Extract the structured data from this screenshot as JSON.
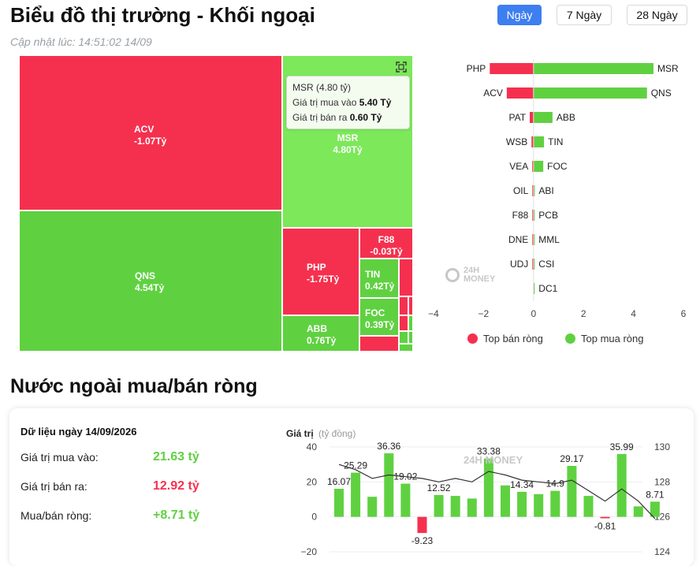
{
  "header": {
    "title": "Biểu đồ thị trường - Khối ngoại",
    "updated": "Cập nhật lúc: 14:51:02 14/09",
    "periods": [
      "Ngày",
      "7 Ngày",
      "28 Ngày"
    ],
    "active_period": "Ngày"
  },
  "colors": {
    "sell": "#f5304f",
    "buy": "#5fd141",
    "accent": "#3d7ef0",
    "line": "#333333"
  },
  "chart_data": [
    {
      "type": "heatmap",
      "name": "treemap",
      "cells": [
        {
          "code": "ACV",
          "value": "-1.07Tỷ",
          "side": "sell"
        },
        {
          "code": "QNS",
          "value": "4.54Tỷ",
          "side": "buy"
        },
        {
          "code": "MSR",
          "value": "4.80Tỷ",
          "side": "buy"
        },
        {
          "code": "PHP",
          "value": "-1.75Tỷ",
          "side": "sell"
        },
        {
          "code": "ABB",
          "value": "0.76Tỷ",
          "side": "buy"
        },
        {
          "code": "F88",
          "value": "-0.03Tỷ",
          "side": "sell"
        },
        {
          "code": "TIN",
          "value": "0.42Tỷ",
          "side": "buy"
        },
        {
          "code": "FOC",
          "value": "0.39Tỷ",
          "side": "buy"
        }
      ],
      "tooltip": {
        "title": "MSR (4.80 tỷ)",
        "buy_label": "Giá trị mua vào",
        "buy_value": "5.40 Tỷ",
        "sell_label": "Giá trị bán ra",
        "sell_value": "0.60 Tỷ"
      }
    },
    {
      "type": "bar",
      "name": "top-net",
      "sell_labels": [
        "PHP",
        "ACV",
        "PAT",
        "WSB",
        "VEA",
        "OIL",
        "F88",
        "DNE",
        "UDJ"
      ],
      "sell_values": [
        -1.75,
        -1.07,
        -0.15,
        -0.08,
        -0.05,
        -0.03,
        -0.03,
        -0.02,
        -0.02
      ],
      "buy_labels": [
        "MSR",
        "QNS",
        "ABB",
        "TIN",
        "FOC",
        "ABI",
        "PCB",
        "MML",
        "CSI",
        "DC1"
      ],
      "buy_values": [
        4.8,
        4.54,
        0.76,
        0.42,
        0.39,
        0.05,
        0.04,
        0.03,
        0.02,
        0.01
      ],
      "xlim": [
        -4,
        6
      ],
      "xticks": [
        -4,
        -2,
        0,
        2,
        4,
        6
      ],
      "legend": [
        "Top bán ròng",
        "Top mua ròng"
      ]
    },
    {
      "type": "bar",
      "name": "net-history",
      "ylabel": "Giá trị",
      "yunit": "(tỷ đồng)",
      "ylim": [
        -20,
        40
      ],
      "yticks": [
        -20,
        0,
        20,
        40
      ],
      "y2lim": [
        124,
        130
      ],
      "y2ticks": [
        124,
        126,
        128,
        130
      ],
      "values": [
        16.07,
        25.29,
        11.5,
        36.36,
        19.02,
        -9.23,
        12.52,
        12.0,
        10.5,
        33.38,
        18.0,
        14.34,
        13.0,
        14.9,
        29.17,
        12.0,
        -0.81,
        35.99,
        6.0,
        8.71
      ],
      "labels": [
        "16.07",
        "25.29",
        "",
        "36.36",
        "19.02",
        "-9.23",
        "12.52",
        "",
        "",
        "33.38",
        "",
        "14.34",
        "",
        "14.9",
        "29.17",
        "",
        "-0.81",
        "35.99",
        "",
        "8.71"
      ],
      "line": [
        129.0,
        128.7,
        128.2,
        128.4,
        128.3,
        128.2,
        128.0,
        128.2,
        128.0,
        128.6,
        128.4,
        128.1,
        128.0,
        127.9,
        128.1,
        127.5,
        126.9,
        127.6,
        126.9,
        125.9
      ]
    }
  ],
  "section2": {
    "title": "Nước ngoài mua/bán ròng",
    "data_date": "Dữ liệu ngày 14/09/2026",
    "rows": [
      {
        "label": "Giá trị mua vào:",
        "value": "21.63 tỷ",
        "color": "#5fd141"
      },
      {
        "label": "Giá trị bán ra:",
        "value": "12.92 tỷ",
        "color": "#f5304f"
      },
      {
        "label": "Mua/bán ròng:",
        "value": "+8.71 tỷ",
        "color": "#5fd141"
      }
    ]
  },
  "watermark": {
    "line1": "24H",
    "line2": "MONEY"
  },
  "icons": {
    "fullscreen": "fullscreen-icon"
  }
}
